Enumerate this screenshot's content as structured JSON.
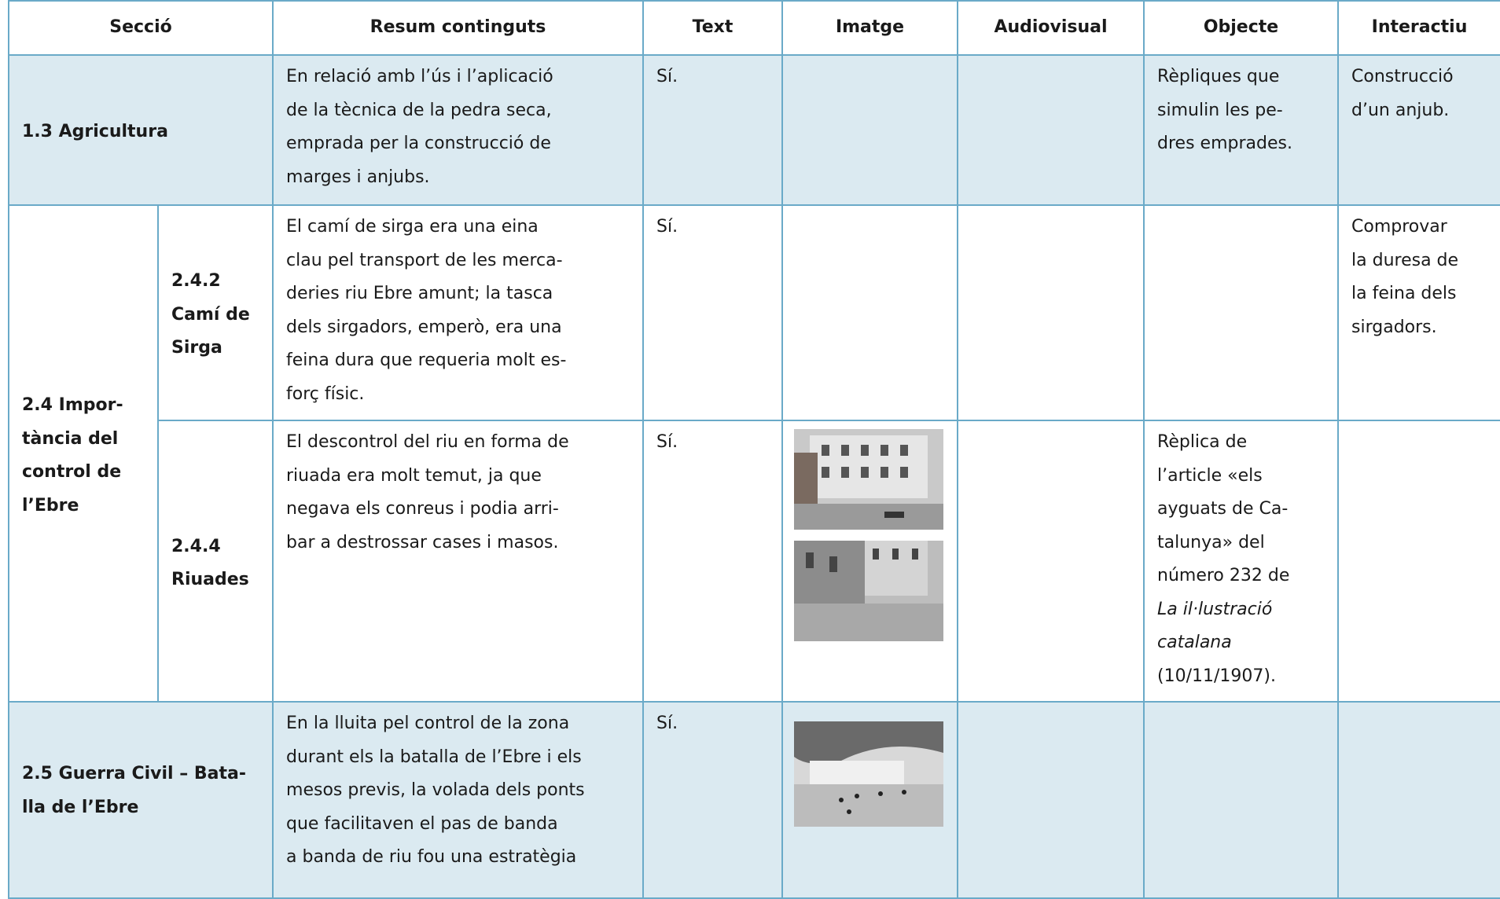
{
  "table": {
    "header": [
      "Secció",
      "Resum continguts",
      "Text",
      "Imatge",
      "Audiovisual",
      "Objecte",
      "Interactiu"
    ],
    "rows": [
      {
        "section": [
          "1.3 Agricultura"
        ],
        "summary": [
          "En relació amb l’ús i l’aplicació",
          "de la tècnica de la pedra seca,",
          "emprada per la construcció de",
          "marges i anjubs."
        ],
        "text": "Sí.",
        "object": [
          "Rèpliques que",
          "simulin les pe-",
          "dres emprades."
        ],
        "interactive": [
          "Construcció",
          "d’un anjub."
        ]
      },
      {
        "section": [
          "2.4 Impor-",
          "tància del",
          "control de",
          "l’Ebre"
        ],
        "subsection": [
          "2.4.2",
          "Camí de",
          "Sirga"
        ],
        "summary": [
          "El camí de sirga era una eina",
          "clau pel transport de les merca-",
          "deries riu Ebre amunt; la tasca",
          "dels sirgadors, emperò, era una",
          "feina dura que requeria molt es-",
          "forç físic."
        ],
        "text": "Sí.",
        "interactive": [
          "Comprovar",
          "la duresa de",
          "la feina dels",
          "sirgadors."
        ]
      },
      {
        "subsection": [
          "2.4.4",
          "Riuades"
        ],
        "summary": [
          "El descontrol del riu en forma de",
          "riuada era molt temut, ja que",
          "negava els conreus i podia arri-",
          "bar a destrossar cases i masos."
        ],
        "text": "Sí.",
        "object": [
          "Rèplica de",
          "l’article «els",
          "ayguats de Ca-",
          "talunya» del",
          "número 232 de",
          "La il·lustració",
          "catalana",
          "(10/11/1907)."
        ]
      },
      {
        "section": [
          "2.5 Guerra Civil – Bata-",
          "lla de l’Ebre"
        ],
        "summary": [
          "En la lluita pel control de la zona",
          "durant els la batalla de l’Ebre i els",
          "mesos previs, la volada dels ponts",
          "que facilitaven el pas de banda",
          "a banda de riu fou una estratègia"
        ],
        "text": "Sí."
      }
    ]
  }
}
